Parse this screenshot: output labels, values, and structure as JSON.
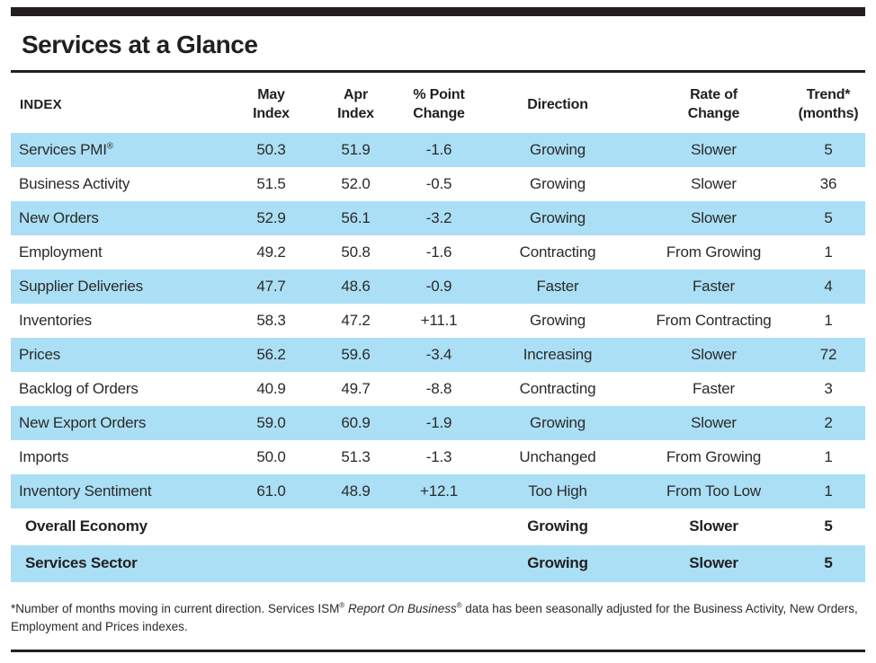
{
  "title": "Services at a Glance",
  "colors": {
    "stripe_blue": "#abdff5",
    "rule_black": "#231f20",
    "text": "#2b2a29"
  },
  "table": {
    "headers": {
      "index": "INDEX",
      "may": "May\nIndex",
      "apr": "Apr\nIndex",
      "change": "% Point\nChange",
      "direction": "Direction",
      "rate": "Rate of\nChange",
      "trend": "Trend*\n(months)"
    },
    "rows": [
      {
        "name": "Services PMI",
        "mark": "®",
        "may": "50.3",
        "apr": "51.9",
        "change": "-1.6",
        "direction": "Growing",
        "rate": "Slower",
        "trend": "5"
      },
      {
        "name": "Business Activity",
        "may": "51.5",
        "apr": "52.0",
        "change": "-0.5",
        "direction": "Growing",
        "rate": "Slower",
        "trend": "36"
      },
      {
        "name": "New Orders",
        "may": "52.9",
        "apr": "56.1",
        "change": "-3.2",
        "direction": "Growing",
        "rate": "Slower",
        "trend": "5"
      },
      {
        "name": "Employment",
        "may": "49.2",
        "apr": "50.8",
        "change": "-1.6",
        "direction": "Contracting",
        "rate": "From Growing",
        "trend": "1"
      },
      {
        "name": "Supplier Deliveries",
        "may": "47.7",
        "apr": "48.6",
        "change": "-0.9",
        "direction": "Faster",
        "rate": "Faster",
        "trend": "4"
      },
      {
        "name": "Inventories",
        "may": "58.3",
        "apr": "47.2",
        "change": "+11.1",
        "direction": "Growing",
        "rate": "From Contracting",
        "trend": "1"
      },
      {
        "name": "Prices",
        "may": "56.2",
        "apr": "59.6",
        "change": "-3.4",
        "direction": "Increasing",
        "rate": "Slower",
        "trend": "72"
      },
      {
        "name": "Backlog of Orders",
        "may": "40.9",
        "apr": "49.7",
        "change": "-8.8",
        "direction": "Contracting",
        "rate": "Faster",
        "trend": "3"
      },
      {
        "name": "New Export Orders",
        "may": "59.0",
        "apr": "60.9",
        "change": "-1.9",
        "direction": "Growing",
        "rate": "Slower",
        "trend": "2"
      },
      {
        "name": "Imports",
        "may": "50.0",
        "apr": "51.3",
        "change": "-1.3",
        "direction": "Unchanged",
        "rate": "From Growing",
        "trend": "1"
      },
      {
        "name": "Inventory Sentiment",
        "may": "61.0",
        "apr": "48.9",
        "change": "+12.1",
        "direction": "Too High",
        "rate": "From Too Low",
        "trend": "1"
      },
      {
        "name": "Overall Economy",
        "summary": true,
        "may": "",
        "apr": "",
        "change": "",
        "direction": "Growing",
        "rate": "Slower",
        "trend": "5"
      },
      {
        "name": "Services Sector",
        "summary": true,
        "may": "",
        "apr": "",
        "change": "",
        "direction": "Growing",
        "rate": "Slower",
        "trend": "5"
      }
    ]
  },
  "footnote": {
    "segments": [
      {
        "text": "*Number of months moving in current direction. Services ISM",
        "style": "normal"
      },
      {
        "text": "®",
        "style": "sup"
      },
      {
        "text": " ",
        "style": "normal"
      },
      {
        "text": "Report On Business",
        "style": "italic"
      },
      {
        "text": "®",
        "style": "sup"
      },
      {
        "text": " data has been seasonally adjusted for the Business Activity, New Orders, Employment and Prices indexes.",
        "style": "normal"
      }
    ]
  }
}
